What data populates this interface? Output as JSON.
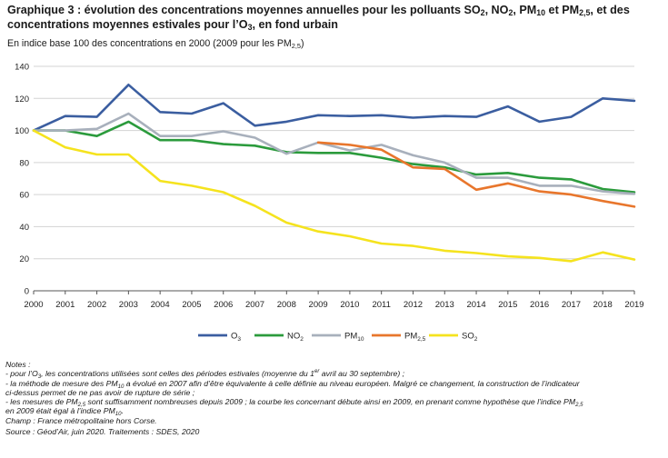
{
  "title": {
    "l1_a": "Graphique 3 : évolution des concentrations moyennes annuelles pour les polluants SO",
    "l1_b": ", NO",
    "l1_c": ", PM",
    "l1_d": " et PM",
    "l1_e": ", et des",
    "l2_a": "concentrations moyennes estivales pour l’O",
    "l2_b": ", en fond urbain",
    "sub_2": "2",
    "sub_10": "10",
    "sub_25": "2,5",
    "sub_3": "3"
  },
  "subtitle": {
    "a": "En indice base 100 des concentrations en 2000 (2009 pour les PM",
    "sub": "2,5",
    "b": ")"
  },
  "chart_data": {
    "type": "line",
    "x": [
      "2000",
      "2001",
      "2002",
      "2003",
      "2004",
      "2005",
      "2006",
      "2007",
      "2008",
      "2009",
      "2010",
      "2011",
      "2012",
      "2013",
      "2014",
      "2015",
      "2016",
      "2017",
      "2018",
      "2019"
    ],
    "ylim": [
      0,
      140
    ],
    "yticks": [
      0,
      20,
      40,
      60,
      80,
      100,
      120,
      140
    ],
    "grid": true,
    "legend_position": "bottom",
    "series": [
      {
        "key": "o3",
        "name": "O",
        "sub": "3",
        "color": "#3b5ea0",
        "values": [
          100,
          109,
          108.5,
          128.5,
          111.5,
          110.5,
          117,
          103,
          105.5,
          109.5,
          109,
          109.5,
          108,
          109,
          108.5,
          115,
          105.5,
          108.5,
          120,
          118.5
        ]
      },
      {
        "key": "no2",
        "name": "NO",
        "sub": "2",
        "color": "#2b9b3c",
        "values": [
          100,
          100,
          96.5,
          105.5,
          94,
          94,
          91.5,
          90.5,
          86.5,
          86,
          86,
          83,
          79,
          77,
          72.5,
          73.5,
          70.5,
          69.5,
          63.5,
          61.5
        ]
      },
      {
        "key": "pm10",
        "name": "PM",
        "sub": "10",
        "color": "#a8b0bc",
        "values": [
          100,
          100,
          101,
          110.5,
          96.5,
          96.5,
          99.5,
          95.5,
          85.5,
          92.5,
          87.5,
          91,
          84.5,
          80,
          70.5,
          70.5,
          65.5,
          65.5,
          62,
          60.5
        ]
      },
      {
        "key": "pm25",
        "name": "PM",
        "sub": "2,5",
        "color": "#e8762c",
        "values": [
          null,
          null,
          null,
          null,
          null,
          null,
          null,
          null,
          null,
          92.5,
          91,
          88,
          77,
          76,
          63,
          67,
          62,
          60,
          56,
          52.5
        ]
      },
      {
        "key": "so2",
        "name": "SO",
        "sub": "2",
        "color": "#f5e31e",
        "values": [
          100,
          89.5,
          85,
          85,
          68.5,
          65.5,
          61.5,
          53,
          42.5,
          37,
          34,
          29.5,
          28,
          25,
          23.5,
          21.5,
          20.5,
          18.5,
          24,
          19.5
        ]
      }
    ]
  },
  "notes": {
    "heading": "Notes :",
    "l1_a": "- pour l’O",
    "l1_sub": "3",
    "l1_b": ", les concentrations utilisées sont celles des périodes estivales (moyenne du 1",
    "l1_sup": "er",
    "l1_c": " avril au 30 septembre) ;",
    "l2_a": "- la méthode de mesure des PM",
    "l2_sub": "10",
    "l2_b": " a évolué en 2007 afin d’être équivalente à celle définie au niveau européen. Malgré ce changement, la construction de l’indicateur",
    "l3": "ci-dessus permet de ne pas avoir de rupture de série ;",
    "l4_a": "- les mesures de PM",
    "l4_sub": "2,5",
    "l4_b": " sont suffisamment nombreuses depuis 2009 ; la courbe les concernant débute ainsi en 2009, en prenant comme hypothèse que l’indice PM",
    "l4_sub2": "2,5",
    "l5_a": "en 2009 était égal à l’indice PM",
    "l5_sub": "10",
    "l5_b": ".",
    "field": "Champ : France métropolitaine hors Corse.",
    "source": "Source : Géod’Air, juin 2020. Traitements : SDES, 2020"
  }
}
